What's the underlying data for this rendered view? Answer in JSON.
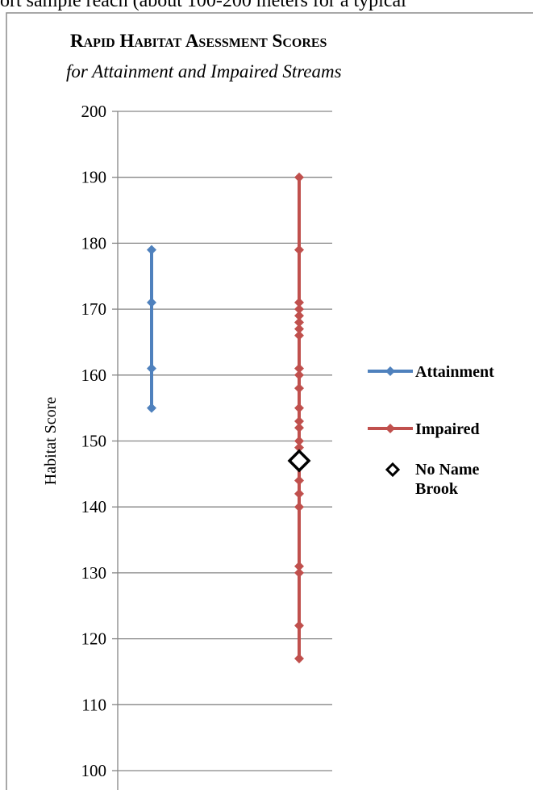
{
  "document": {
    "top_text": "ort sample reach (about 100-200 meters for a typical"
  },
  "chart_data": {
    "type": "line",
    "title": "Rapid Habitat Asessment Scores",
    "subtitle": "for Attainment and Impaired Streams",
    "xlabel": "",
    "ylabel": "Habitat Score",
    "ylim": [
      100,
      200
    ],
    "yticks": [
      100,
      110,
      120,
      130,
      140,
      150,
      160,
      170,
      180,
      190,
      200
    ],
    "grid": true,
    "legend_position": "right",
    "colors": {
      "attainment": "#4F81BD",
      "impaired": "#C0504D",
      "marker": "#000000"
    },
    "series": [
      {
        "name": "Attainment",
        "x_position": 1,
        "color": "#4F81BD",
        "marker": "diamond",
        "values": [
          155,
          161,
          171,
          179
        ]
      },
      {
        "name": "Impaired",
        "x_position": 2,
        "color": "#C0504D",
        "marker": "diamond",
        "values": [
          117,
          122,
          130,
          131,
          140,
          142,
          144,
          147,
          149,
          150,
          152,
          153,
          155,
          158,
          160,
          161,
          166,
          167,
          168,
          169,
          170,
          171,
          179,
          190
        ]
      },
      {
        "name": "No Name Brook",
        "x_position": 2,
        "color": "#000000",
        "marker": "hollow-diamond",
        "values": [
          147
        ]
      }
    ]
  }
}
